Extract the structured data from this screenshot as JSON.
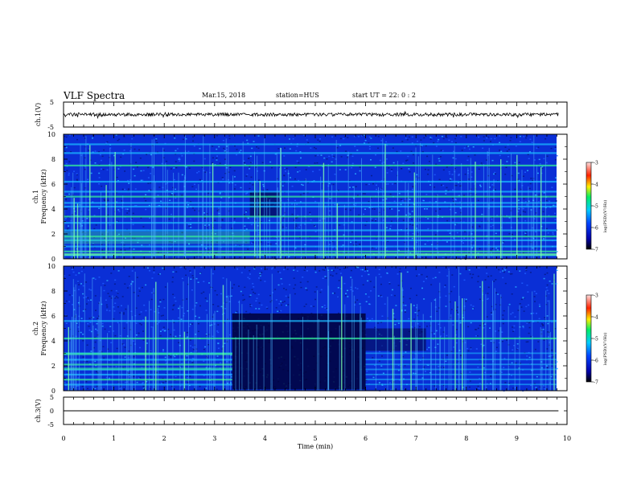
{
  "header": {
    "title": "VLF Spectra",
    "date": "Mar.15, 2018",
    "station": "station=HUS",
    "start": "start  UT  =   22: 0  : 2"
  },
  "chart_data": [
    {
      "type": "line",
      "panel": "ch1-waveform",
      "ylabel": "ch.1(V)",
      "ylim": [
        -5,
        5
      ],
      "yticks": [
        "5",
        "-5"
      ],
      "xlim": [
        0,
        10
      ],
      "description_values": {
        "baseline_v": 0
      }
    },
    {
      "type": "heatmap",
      "panel": "ch1-spectrogram",
      "ylabel_top": "ch.1",
      "ylabel": "Frequency  (kHz)",
      "ylim": [
        0,
        10
      ],
      "yticks": [
        "0",
        "2",
        "4",
        "6",
        "8",
        "10"
      ],
      "xlim": [
        0,
        9.83
      ],
      "colorbar": {
        "label": "log(PSD)(V²/Hz)",
        "range": [
          -7,
          -3
        ],
        "ticks": [
          "-3",
          "-4",
          "-5",
          "-6",
          "-7"
        ]
      },
      "bands_khz": [
        0.3,
        0.6,
        1.0,
        1.5,
        1.8,
        2.3,
        2.9,
        3.4,
        4.2,
        4.5,
        5.0,
        5.4,
        6.2,
        7.5,
        8.5,
        9.2
      ],
      "dark_gap_minutes": [
        3.7,
        4.3
      ]
    },
    {
      "type": "heatmap",
      "panel": "ch2-spectrogram",
      "ylabel_top": "ch.2",
      "ylabel": "Frequency  (kHz)",
      "ylim": [
        0,
        10
      ],
      "yticks": [
        "0",
        "2",
        "4",
        "6",
        "8",
        "10"
      ],
      "xlim": [
        0,
        9.83
      ],
      "colorbar": {
        "label": "log(PSD)(V²/Hz)",
        "range": [
          -7,
          -3
        ],
        "ticks": [
          "-3",
          "-4",
          "-5",
          "-6",
          "-7"
        ]
      },
      "bands_khz": [
        0.5,
        0.9,
        1.3,
        1.7,
        2.1,
        2.5,
        3.0,
        4.2,
        5.6
      ],
      "dark_region_minutes": [
        3.35,
        6.0
      ]
    },
    {
      "type": "line",
      "panel": "ch3-waveform",
      "ylabel": "ch.3(V)",
      "ylim": [
        -5,
        5
      ],
      "yticks": [
        "5",
        "0",
        "-5"
      ],
      "xlim": [
        0,
        10
      ],
      "description_values": {
        "baseline_v": 0
      }
    }
  ],
  "xaxis": {
    "label": "Time  (min)",
    "ticks": [
      "0",
      "1",
      "2",
      "3",
      "4",
      "5",
      "6",
      "7",
      "8",
      "9",
      "10"
    ]
  },
  "colors": {
    "spectrogram_base": "#0a2fd6",
    "spectrogram_dark": "#000033",
    "band": "#1ab8ff",
    "band_strong": "#33ee99",
    "line": "#000000"
  }
}
